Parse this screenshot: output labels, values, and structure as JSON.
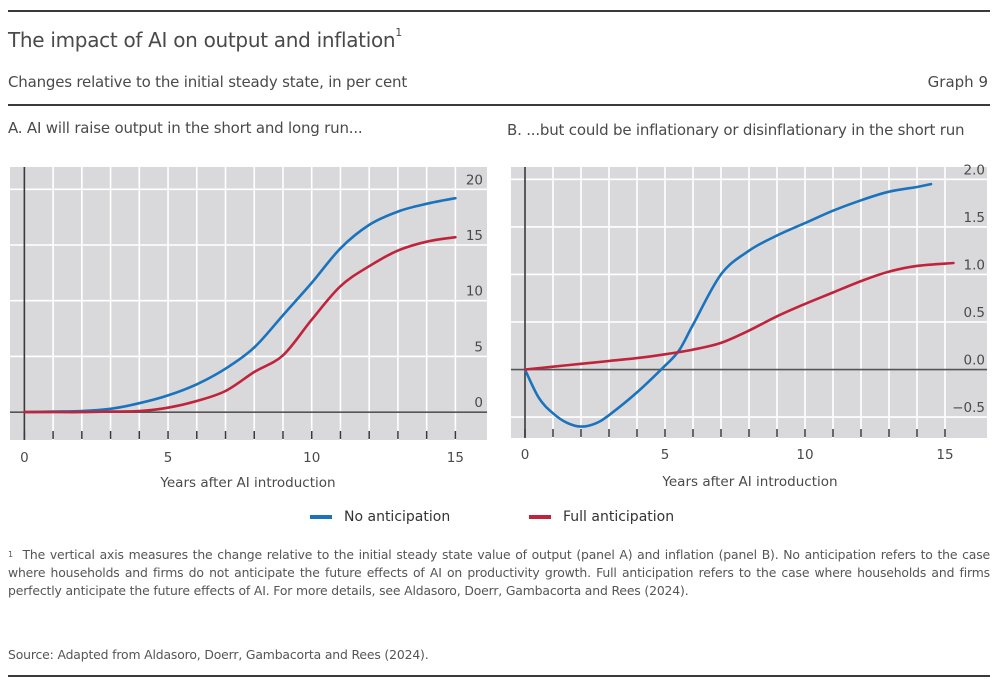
{
  "header": {
    "title": "The impact of AI on output and inflation",
    "title_footnote_marker": "1",
    "subtitle": "Changes relative to the initial steady state, in per cent",
    "graph_number": "Graph 9"
  },
  "colors": {
    "no_anticipation": "#1a73bc",
    "full_anticipation": "#c0243c",
    "plot_background": "#d9d9db",
    "gridline": "#ffffff",
    "axis": "#555555"
  },
  "legend": [
    {
      "label": "No anticipation",
      "color": "#1a73bc"
    },
    {
      "label": "Full anticipation",
      "color": "#c0243c"
    }
  ],
  "chart_data": [
    {
      "type": "line",
      "title": "A. AI will raise output in the short and long run...",
      "xlabel": "Years after AI introduction",
      "ylabel": "",
      "xlim": [
        -0.5,
        16.1
      ],
      "ylim": [
        -2.5,
        22
      ],
      "xticks": [
        0,
        5,
        10,
        15
      ],
      "xtick_labels": [
        "0",
        "5",
        "10",
        "15"
      ],
      "minor_xticks": [
        0,
        1,
        2,
        3,
        4,
        5,
        6,
        7,
        8,
        9,
        10,
        11,
        12,
        13,
        14,
        15
      ],
      "yticks": [
        0,
        5,
        10,
        15,
        20
      ],
      "ytick_labels": [
        "0",
        "5",
        "10",
        "15",
        "20"
      ],
      "y_axis_side": "right",
      "grid": true,
      "series": [
        {
          "name": "No anticipation",
          "x": [
            0,
            1,
            2,
            3,
            4,
            5,
            6,
            7,
            8,
            9,
            10,
            11,
            12,
            13,
            14,
            15
          ],
          "values": [
            0,
            0.05,
            0.1,
            0.3,
            0.8,
            1.5,
            2.5,
            3.9,
            5.8,
            8.7,
            11.6,
            14.7,
            16.8,
            18.0,
            18.7,
            19.2
          ]
        },
        {
          "name": "Full anticipation",
          "x": [
            0,
            1,
            2,
            3,
            4,
            5,
            6,
            7,
            8,
            9,
            10,
            11,
            12,
            13,
            14,
            15
          ],
          "values": [
            0,
            0,
            0,
            0.05,
            0.1,
            0.4,
            1.0,
            1.9,
            3.6,
            5.1,
            8.3,
            11.3,
            13.1,
            14.5,
            15.3,
            15.7
          ]
        }
      ]
    },
    {
      "type": "line",
      "title": "B. ...but could be inflationary or disinflationary in the short run",
      "xlabel": "Years after AI introduction",
      "ylabel": "",
      "xlim": [
        -0.5,
        16.5
      ],
      "ylim": [
        -0.72,
        2.13
      ],
      "xticks": [
        0,
        5,
        10,
        15
      ],
      "xtick_labels": [
        "0",
        "5",
        "10",
        "15"
      ],
      "minor_xticks": [
        0,
        1,
        2,
        3,
        4,
        5,
        6,
        7,
        8,
        9,
        10,
        11,
        12,
        13,
        14,
        15
      ],
      "yticks": [
        -0.5,
        0.0,
        0.5,
        1.0,
        1.5,
        2.0
      ],
      "ytick_labels": [
        "−0.5",
        "0.0",
        "0.5",
        "1.0",
        "1.5",
        "2.0"
      ],
      "y_axis_side": "right",
      "grid": true,
      "series": [
        {
          "name": "No anticipation",
          "x": [
            0,
            0.5,
            1,
            1.5,
            2,
            2.5,
            3,
            4,
            5,
            5.5,
            6,
            7,
            8,
            9,
            10,
            11,
            12,
            13,
            14,
            14.5
          ],
          "values": [
            0,
            -0.3,
            -0.46,
            -0.56,
            -0.6,
            -0.57,
            -0.48,
            -0.24,
            0.04,
            0.2,
            0.47,
            1.0,
            1.25,
            1.41,
            1.54,
            1.67,
            1.78,
            1.87,
            1.92,
            1.95
          ]
        },
        {
          "name": "Full anticipation",
          "x": [
            0,
            1,
            2,
            3,
            4,
            5,
            6,
            7,
            8,
            9,
            10,
            11,
            12,
            13,
            14,
            15.3
          ],
          "values": [
            0,
            0.03,
            0.06,
            0.09,
            0.12,
            0.16,
            0.21,
            0.28,
            0.41,
            0.56,
            0.69,
            0.81,
            0.93,
            1.03,
            1.09,
            1.12
          ]
        }
      ]
    }
  ],
  "footnote": {
    "marker": "1",
    "text": "The vertical axis measures the change relative to the initial steady state value of output (panel A) and inflation (panel B). No anticipation refers to the case where households and firms do not anticipate the future effects of AI on productivity growth. Full anticipation refers to the case where households and firms perfectly anticipate the future effects of AI. For more details, see Aldasoro, Doerr, Gambacorta and Rees (2024)."
  },
  "source": "Source: Adapted from Aldasoro, Doerr, Gambacorta and Rees (2024)."
}
